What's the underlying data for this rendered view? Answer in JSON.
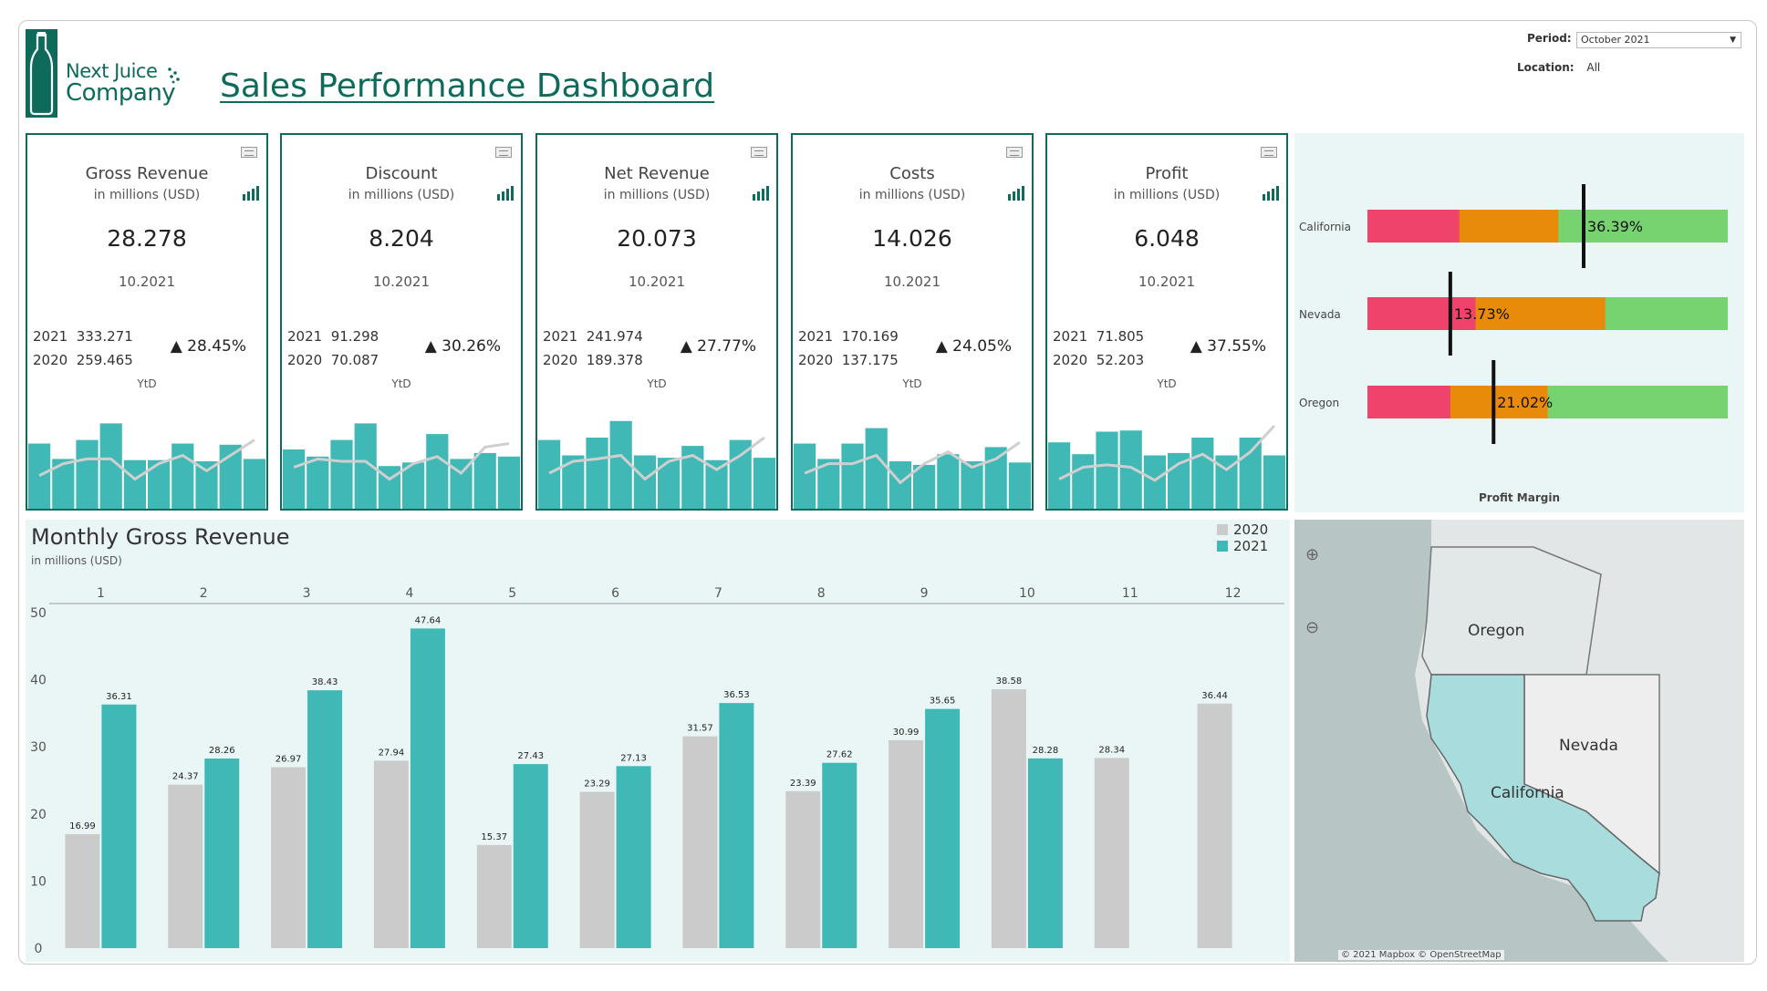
{
  "brand": {
    "line1": "Next Juice",
    "line2": "Company"
  },
  "title": "Sales Performance Dashboard",
  "filters": {
    "period_label": "Period:",
    "period_value": "October 2021",
    "location_label": "Location:",
    "location_value": "All"
  },
  "kpis": [
    {
      "title": "Gross Revenue",
      "sub": "in millions (USD)",
      "value": "28.278",
      "date": "10.2021",
      "y2021": "333.271",
      "y2020": "259.465",
      "change": "▲ 28.45%",
      "ytd": "YtD",
      "bars": [
        0.55,
        0.42,
        0.58,
        0.72,
        0.41,
        0.41,
        0.55,
        0.4,
        0.54,
        0.42
      ],
      "line": [
        0.28,
        0.38,
        0.42,
        0.42,
        0.25,
        0.38,
        0.45,
        0.32,
        0.45,
        0.58
      ]
    },
    {
      "title": "Discount",
      "sub": "in millions (USD)",
      "value": "8.204",
      "date": "10.2021",
      "y2021": "91.298",
      "y2020": "70.087",
      "change": "▲ 30.26%",
      "ytd": "YtD",
      "bars": [
        0.5,
        0.44,
        0.58,
        0.72,
        0.36,
        0.39,
        0.63,
        0.42,
        0.47,
        0.44
      ],
      "line": [
        0.35,
        0.42,
        0.4,
        0.4,
        0.25,
        0.38,
        0.44,
        0.3,
        0.52,
        0.55
      ]
    },
    {
      "title": "Net Revenue",
      "sub": "in millions (USD)",
      "value": "20.073",
      "date": "10.2021",
      "y2021": "241.974",
      "y2020": "189.378",
      "change": "▲ 27.77%",
      "ytd": "YtD",
      "bars": [
        0.58,
        0.45,
        0.6,
        0.74,
        0.45,
        0.43,
        0.53,
        0.41,
        0.58,
        0.43
      ],
      "line": [
        0.3,
        0.4,
        0.42,
        0.45,
        0.25,
        0.4,
        0.45,
        0.33,
        0.45,
        0.6
      ]
    },
    {
      "title": "Costs",
      "sub": "in millions (USD)",
      "value": "14.026",
      "date": "10.2021",
      "y2021": "170.169",
      "y2020": "137.175",
      "change": "▲ 24.05%",
      "ytd": "YtD",
      "bars": [
        0.55,
        0.42,
        0.55,
        0.68,
        0.4,
        0.37,
        0.46,
        0.4,
        0.52,
        0.39
      ],
      "line": [
        0.3,
        0.38,
        0.38,
        0.45,
        0.22,
        0.38,
        0.48,
        0.35,
        0.42,
        0.56
      ]
    },
    {
      "title": "Profit",
      "sub": "in millions (USD)",
      "value": "6.048",
      "date": "10.2021",
      "y2021": "71.805",
      "y2020": "52.203",
      "change": "▲ 37.55%",
      "ytd": "YtD",
      "bars": [
        0.56,
        0.46,
        0.65,
        0.66,
        0.45,
        0.47,
        0.6,
        0.45,
        0.6,
        0.45
      ],
      "line": [
        0.25,
        0.35,
        0.37,
        0.35,
        0.24,
        0.38,
        0.46,
        0.33,
        0.48,
        0.7
      ]
    }
  ],
  "profit_margin": {
    "title": "Profit Margin",
    "rows": [
      {
        "state": "California",
        "value": "36.39%",
        "marker": 0.6,
        "seg1": 0.255,
        "seg2": 0.53
      },
      {
        "state": "Nevada",
        "value": "13.73%",
        "marker": 0.23,
        "seg1": 0.3,
        "seg2": 0.66
      },
      {
        "state": "Oregon",
        "value": "21.02%",
        "marker": 0.35,
        "seg1": 0.23,
        "seg2": 0.5
      }
    ],
    "colors": {
      "low": "#f0436b",
      "mid": "#e88a0a",
      "high": "#77d36f",
      "marker": "#111111"
    }
  },
  "monthly": {
    "title": "Monthly Gross Revenue",
    "subtitle": "in millions (USD)",
    "legend": [
      "2020",
      "2021"
    ],
    "colors": {
      "2020": "#cbcbcb",
      "2021": "#3fb8b6"
    }
  },
  "chart_data": {
    "type": "bar",
    "categories": [
      "1",
      "2",
      "3",
      "4",
      "5",
      "6",
      "7",
      "8",
      "9",
      "10",
      "11",
      "12"
    ],
    "series": [
      {
        "name": "2020",
        "values": [
          16.99,
          24.37,
          26.97,
          27.94,
          15.37,
          23.29,
          31.57,
          23.39,
          30.99,
          38.58,
          28.34,
          36.44
        ]
      },
      {
        "name": "2021",
        "values": [
          36.31,
          28.26,
          38.43,
          47.64,
          27.43,
          27.13,
          36.53,
          27.62,
          35.65,
          28.28,
          null,
          null
        ]
      }
    ],
    "title": "Monthly Gross Revenue",
    "ylabel": "in millions (USD)",
    "ylim": [
      0,
      50
    ],
    "yticks": [
      0,
      10,
      20,
      30,
      40,
      50
    ],
    "grid": false,
    "legend": "top-right"
  },
  "map": {
    "labels": {
      "oregon": "Oregon",
      "nevada": "Nevada",
      "california": "California"
    },
    "credit": "© 2021 Mapbox © OpenStreetMap"
  },
  "theme": {
    "accent": "#0e6b5c",
    "teal": "#3fb8b6",
    "panel": "#eaf6f5"
  }
}
